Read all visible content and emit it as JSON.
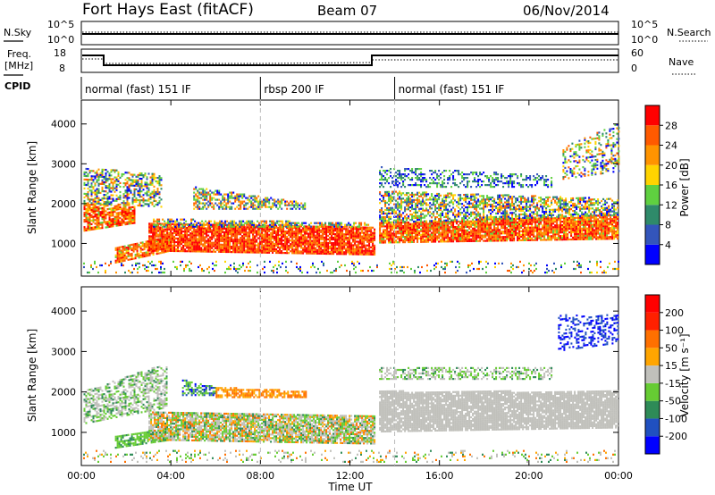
{
  "header": {
    "title": "Fort Hays East (fitACF)",
    "beam": "Beam 07",
    "date": "06/Nov/2014"
  },
  "top_panels": {
    "nsky_label": "N.Sky",
    "nsky_ticks": [
      "10^5",
      "10^0"
    ],
    "nsearch_label": "N.Search",
    "nsearch_ticks": [
      "10^5",
      "10^0"
    ],
    "freq_label_1": "Freq.",
    "freq_label_2": "[MHz]",
    "freq_ticks": [
      "18",
      "8"
    ],
    "nave_label": "Nave",
    "nave_ticks": [
      "60",
      "0"
    ],
    "cpid_label": "CPID",
    "cpid_segments": [
      {
        "start_hour": 0,
        "end_hour": 8,
        "label": "normal (fast) 151 IF"
      },
      {
        "start_hour": 8,
        "end_hour": 14,
        "label": "rbsp 200 IF"
      },
      {
        "start_hour": 14,
        "end_hour": 24,
        "label": "normal (fast) 151 IF"
      }
    ]
  },
  "chart_data": [
    {
      "type": "heatmap",
      "name": "power",
      "ylabel": "Slant Range [km]",
      "yticks": [
        1000,
        2000,
        3000,
        4000
      ],
      "ylim": [
        180,
        4600
      ],
      "colorbar": {
        "label": "Power [dB]",
        "ticks": [
          "4",
          "8",
          "12",
          "16",
          "20",
          "24",
          "28"
        ],
        "colors": [
          "#0000ff",
          "#3355bb",
          "#2f8a6a",
          "#5fd040",
          "#ffd400",
          "#ff9400",
          "#ff5a00",
          "#ff0000"
        ]
      }
    },
    {
      "type": "heatmap",
      "name": "velocity",
      "ylabel": "Slant Range [km]",
      "yticks": [
        1000,
        2000,
        3000,
        4000
      ],
      "ylim": [
        180,
        4600
      ],
      "xlabel": "Time UT",
      "xticks": [
        "00:00",
        "04:00",
        "08:00",
        "12:00",
        "16:00",
        "20:00",
        "00:00"
      ],
      "xlim_hours": [
        0,
        24
      ],
      "colorbar": {
        "label": "Velocity [m s⁻¹]",
        "ticks": [
          "200",
          "100",
          "50",
          "15",
          "-15",
          "-50",
          "-100",
          "-200"
        ],
        "colors": [
          "#0000ff",
          "#2050c0",
          "#2e8b57",
          "#66cc33",
          "#c0c0bb",
          "#ffa500",
          "#ff7000",
          "#ff2000",
          "#ff0000"
        ]
      }
    }
  ]
}
